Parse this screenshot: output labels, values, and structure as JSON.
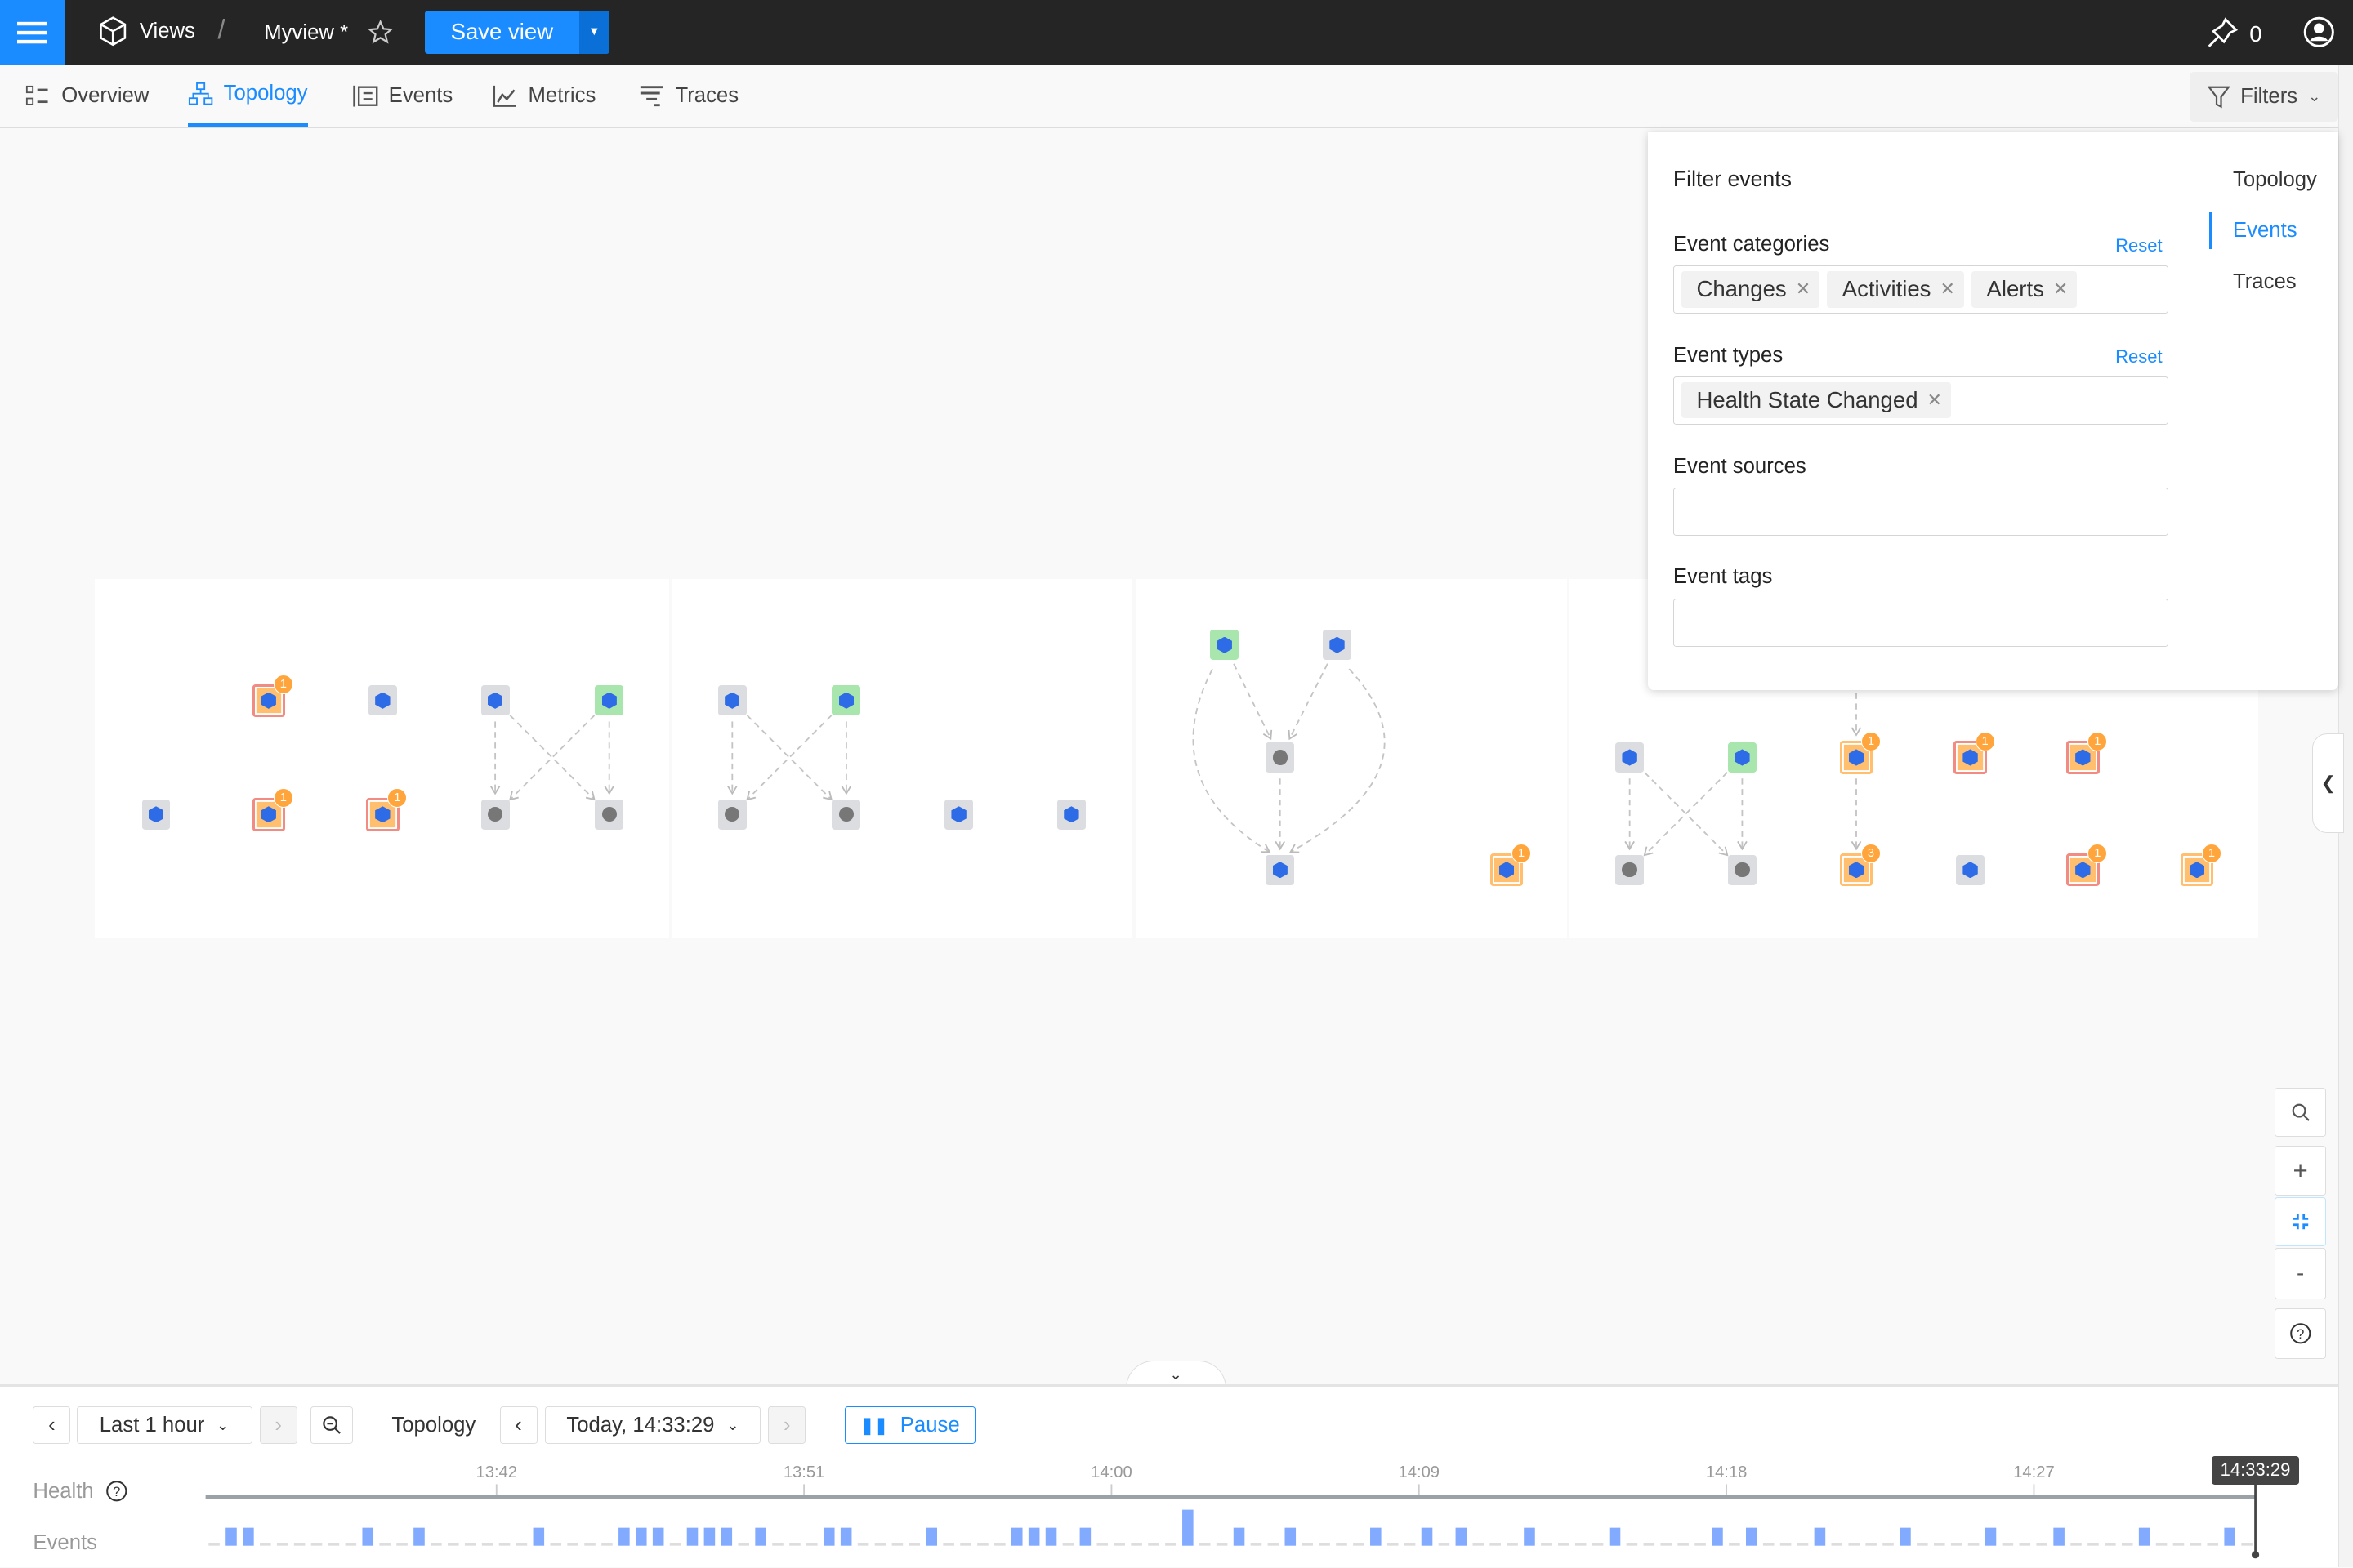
{
  "topbar": {
    "breadcrumb_root": "Views",
    "separator": "/",
    "view_name": "Myview *",
    "save_label": "Save view",
    "pin_count": "0"
  },
  "tabs": [
    {
      "label": "Overview",
      "icon": "overview-icon",
      "active": false
    },
    {
      "label": "Topology",
      "icon": "topology-icon",
      "active": true
    },
    {
      "label": "Events",
      "icon": "events-icon",
      "active": false
    },
    {
      "label": "Metrics",
      "icon": "metrics-icon",
      "active": false
    },
    {
      "label": "Traces",
      "icon": "traces-icon",
      "active": false
    }
  ],
  "filters_label": "Filters",
  "filter_panel": {
    "title": "Filter events",
    "categories_label": "Event categories",
    "categories_reset": "Reset",
    "categories": [
      "Changes",
      "Activities",
      "Alerts"
    ],
    "types_label": "Event types",
    "types_reset": "Reset",
    "types": [
      "Health State Changed"
    ],
    "sources_label": "Event sources",
    "sources_value": "",
    "tags_label": "Event tags",
    "tags_value": "",
    "side_nav": [
      {
        "label": "Topology",
        "active": false
      },
      {
        "label": "Events",
        "active": true
      },
      {
        "label": "Traces",
        "active": false
      }
    ]
  },
  "topology": {
    "colors": {
      "deviating": "#ffbf6e",
      "clear": "#a8e6ae",
      "unknown": "#dcdde1",
      "critical_border": "#f28b82",
      "badge": "#ffa53b"
    },
    "nodes": [
      {
        "state": "orange",
        "border": "red",
        "badge": "1",
        "icon": "service-icon"
      },
      {
        "state": "grey",
        "border": "",
        "badge": "",
        "icon": "configmap-icon"
      },
      {
        "state": "grey",
        "border": "",
        "badge": "",
        "icon": "deployment-icon"
      },
      {
        "state": "green",
        "border": "",
        "badge": "",
        "icon": "service-icon"
      },
      {
        "state": "grey",
        "border": "",
        "badge": "",
        "icon": "secret-icon"
      },
      {
        "state": "orange",
        "border": "red",
        "badge": "1",
        "icon": "service-icon"
      },
      {
        "state": "orange",
        "border": "red",
        "badge": "1",
        "icon": "service-icon"
      },
      {
        "state": "grey",
        "border": "",
        "badge": "",
        "icon": "database-icon"
      },
      {
        "state": "grey",
        "border": "",
        "badge": "",
        "icon": "database-icon"
      },
      {
        "state": "grey",
        "border": "",
        "badge": "",
        "icon": "deployment-icon"
      },
      {
        "state": "green",
        "border": "",
        "badge": "",
        "icon": "service-icon"
      },
      {
        "state": "grey",
        "border": "",
        "badge": "",
        "icon": "database-icon"
      },
      {
        "state": "grey",
        "border": "",
        "badge": "",
        "icon": "database-icon"
      },
      {
        "state": "grey",
        "border": "",
        "badge": "",
        "icon": "configmap-icon"
      },
      {
        "state": "grey",
        "border": "",
        "badge": "",
        "icon": "secret-icon"
      },
      {
        "state": "green",
        "border": "",
        "badge": "",
        "icon": "service-icon"
      },
      {
        "state": "grey",
        "border": "",
        "badge": "",
        "icon": "deployment-icon"
      },
      {
        "state": "grey",
        "border": "",
        "badge": "",
        "icon": "database-icon"
      },
      {
        "state": "grey",
        "border": "",
        "badge": "",
        "icon": "pod-icon"
      },
      {
        "state": "orange",
        "border": "orange",
        "badge": "1",
        "icon": "service-icon"
      },
      {
        "state": "grey",
        "border": "",
        "badge": "",
        "icon": "deployment-icon"
      },
      {
        "state": "green",
        "border": "",
        "badge": "",
        "icon": "service-icon"
      },
      {
        "state": "orange",
        "border": "orange",
        "badge": "1",
        "icon": "service-icon"
      },
      {
        "state": "orange",
        "border": "red",
        "badge": "1",
        "icon": "service-icon"
      },
      {
        "state": "orange",
        "border": "red",
        "badge": "1",
        "icon": "service-icon"
      },
      {
        "state": "grey",
        "border": "",
        "badge": "",
        "icon": "database-icon"
      },
      {
        "state": "grey",
        "border": "",
        "badge": "",
        "icon": "database-icon"
      },
      {
        "state": "orange",
        "border": "orange",
        "badge": "3",
        "icon": "service-icon"
      },
      {
        "state": "grey",
        "border": "",
        "badge": "",
        "icon": "configmap-icon"
      },
      {
        "state": "orange",
        "border": "red",
        "badge": "1",
        "icon": "service-icon"
      },
      {
        "state": "orange",
        "border": "orange",
        "badge": "1",
        "icon": "service-icon"
      }
    ]
  },
  "timeline": {
    "range_label": "Last 1 hour",
    "topology_label": "Topology",
    "time_label": "Today, 14:33:29",
    "pause_label": "Pause",
    "health_label": "Health",
    "events_label": "Events",
    "cursor_time": "14:33:29"
  },
  "chart_data": {
    "type": "bar",
    "xlabel": "",
    "ylabel": "",
    "x_range": [
      "13:33:29",
      "14:33:29"
    ],
    "tick_labels": [
      "13:42",
      "13:51",
      "14:00",
      "14:09",
      "14:18",
      "14:27"
    ],
    "bucket_seconds": 30,
    "event_color": "#82aaff",
    "health_color": "#9aa2a8",
    "values": [
      0,
      1,
      1,
      0,
      0,
      0,
      0,
      0,
      0,
      1,
      0,
      0,
      1,
      0,
      0,
      0,
      0,
      0,
      0,
      1,
      0,
      0,
      0,
      0,
      1,
      1,
      1,
      0,
      1,
      1,
      1,
      0,
      1,
      0,
      0,
      0,
      1,
      1,
      0,
      0,
      0,
      0,
      1,
      0,
      0,
      0,
      0,
      1,
      1,
      1,
      0,
      1,
      0,
      0,
      0,
      0,
      0,
      2,
      0,
      0,
      1,
      0,
      0,
      1,
      0,
      0,
      0,
      0,
      1,
      0,
      0,
      1,
      0,
      1,
      0,
      0,
      0,
      1,
      0,
      0,
      0,
      0,
      1,
      0,
      0,
      0,
      0,
      0,
      1,
      0,
      1,
      0,
      0,
      0,
      1,
      0,
      0,
      0,
      0,
      1,
      0,
      0,
      0,
      0,
      1,
      0,
      0,
      0,
      1,
      0,
      0,
      0,
      0,
      1,
      0,
      0,
      0,
      0,
      1,
      0
    ]
  }
}
